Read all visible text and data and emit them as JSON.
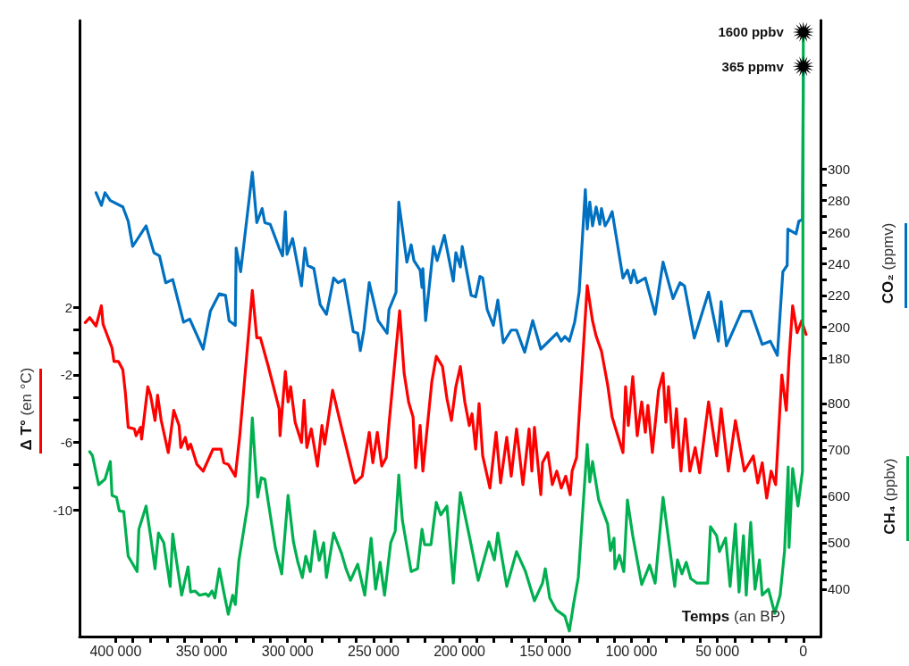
{
  "chart_data": {
    "type": "line",
    "xlabel": "Temps (an BP)",
    "ylabel": "Δ T° (en °C)",
    "y2label": "CO₂ (ppmv)",
    "y3label": "CH₄ (ppbv)",
    "xlim": [
      421000,
      -10000
    ],
    "xticks": [
      {
        "value": 400000,
        "label": "400 000"
      },
      {
        "value": 390000,
        "label": null
      },
      {
        "value": 380000,
        "label": null
      },
      {
        "value": 370000,
        "label": null
      },
      {
        "value": 360000,
        "label": null
      },
      {
        "value": 350000,
        "label": "350 000"
      },
      {
        "value": 340000,
        "label": null
      },
      {
        "value": 330000,
        "label": null
      },
      {
        "value": 320000,
        "label": null
      },
      {
        "value": 310000,
        "label": null
      },
      {
        "value": 300000,
        "label": "300 000"
      },
      {
        "value": 290000,
        "label": null
      },
      {
        "value": 280000,
        "label": null
      },
      {
        "value": 270000,
        "label": null
      },
      {
        "value": 260000,
        "label": null
      },
      {
        "value": 250000,
        "label": "250 000"
      },
      {
        "value": 240000,
        "label": null
      },
      {
        "value": 230000,
        "label": null
      },
      {
        "value": 220000,
        "label": null
      },
      {
        "value": 210000,
        "label": null
      },
      {
        "value": 200000,
        "label": "200 000"
      },
      {
        "value": 190000,
        "label": null
      },
      {
        "value": 180000,
        "label": null
      },
      {
        "value": 170000,
        "label": null
      },
      {
        "value": 160000,
        "label": null
      },
      {
        "value": 150000,
        "label": "150 000"
      },
      {
        "value": 140000,
        "label": null
      },
      {
        "value": 130000,
        "label": null
      },
      {
        "value": 120000,
        "label": null
      },
      {
        "value": 110000,
        "label": null
      },
      {
        "value": 100000,
        "label": "100 000"
      },
      {
        "value": 90000,
        "label": null
      },
      {
        "value": 80000,
        "label": null
      },
      {
        "value": 70000,
        "label": null
      },
      {
        "value": 60000,
        "label": null
      },
      {
        "value": 50000,
        "label": "50 000"
      },
      {
        "value": 40000,
        "label": null
      },
      {
        "value": 30000,
        "label": null
      },
      {
        "value": 20000,
        "label": null
      },
      {
        "value": 10000,
        "label": null
      },
      {
        "value": 0,
        "label": "0"
      }
    ],
    "ylim": [
      -17.5,
      19
    ],
    "yticks": [
      2,
      {
        "value": 0.67,
        "label": null
      },
      {
        "value": -0.67,
        "label": null
      },
      -2,
      {
        "value": -3.33,
        "label": null
      },
      {
        "value": -4.67,
        "label": null
      },
      -6,
      {
        "value": -7.33,
        "label": null
      },
      {
        "value": -8.67,
        "label": null
      },
      -10
    ],
    "y2lim": [
      4,
      394
    ],
    "y2ticks": [
      180,
      {
        "value": 190,
        "label": null
      },
      200,
      {
        "value": 210,
        "label": null
      },
      220,
      {
        "value": 230,
        "label": null
      },
      240,
      {
        "value": 250,
        "label": null
      },
      260,
      {
        "value": 270,
        "label": null
      },
      280,
      {
        "value": 290,
        "label": null
      },
      300
    ],
    "y3lim": [
      298,
      1625
    ],
    "y3ticks": [
      400,
      {
        "value": 420,
        "label": null
      },
      {
        "value": 440,
        "label": null
      },
      {
        "value": 460,
        "label": null
      },
      {
        "value": 480,
        "label": null
      },
      500,
      {
        "value": 520,
        "label": null
      },
      {
        "value": 540,
        "label": null
      },
      {
        "value": 560,
        "label": null
      },
      {
        "value": 580,
        "label": null
      },
      600,
      {
        "value": 620,
        "label": null
      },
      {
        "value": 640,
        "label": null
      },
      {
        "value": 660,
        "label": null
      },
      {
        "value": 680,
        "label": null
      },
      700,
      {
        "value": 720,
        "label": null
      },
      {
        "value": 740,
        "label": null
      },
      {
        "value": 760,
        "label": null
      },
      {
        "value": 780,
        "label": null
      },
      800
    ],
    "marker": "none",
    "line_style": "solid",
    "grid": false,
    "annotations": [
      "1600 ppbv",
      "365 ppmv"
    ],
    "series": [
      {
        "color": "#0070c0",
        "axis": "y2",
        "x": [
          411400,
          408300,
          406200,
          403100,
          395800,
          392700,
          390100,
          382300,
          377700,
          374500,
          370900,
          366800,
          360500,
          356900,
          349100,
          344900,
          339700,
          336100,
          334000,
          330400,
          329900,
          327300,
          320500,
          317900,
          314800,
          313200,
          310100,
          304900,
          302900,
          301300,
          300300,
          297100,
          291900,
          289900,
          288300,
          284700,
          281000,
          277400,
          273200,
          270600,
          267000,
          261800,
          259200,
          257700,
          255600,
          252500,
          247300,
          242100,
          241000,
          236900,
          235300,
          230600,
          228100,
          226500,
          222900,
          221800,
          221300,
          219700,
          215100,
          213000,
          208800,
          203600,
          202100,
          199500,
          198400,
          193200,
          190600,
          188100,
          186500,
          183900,
          180300,
          177700,
          174500,
          169900,
          166800,
          162100,
          157400,
          152700,
          143400,
          140800,
          138700,
          136100,
          133000,
          130400,
          126800,
          125700,
          124200,
          122600,
          120500,
          118400,
          117400,
          115300,
          113200,
          111200,
          104900,
          102300,
          100300,
          98700,
          96600,
          91900,
          86200,
          81600,
          75800,
          71700,
          69100,
          63400,
          55100,
          49400,
          47800,
          44700,
          35800,
          30600,
          23900,
          19200,
          15100,
          11900,
          9400,
          9000,
          4200,
          2600,
          500,
          0
        ],
        "values": [
          285,
          277,
          285,
          280,
          276,
          267,
          251,
          264,
          247,
          245,
          228,
          230,
          203,
          205,
          186,
          210,
          221,
          220,
          204,
          201,
          250,
          235,
          298,
          266,
          275,
          266,
          265,
          250,
          245,
          273,
          246,
          256,
          226,
          250,
          239,
          237,
          214,
          208,
          231,
          228,
          230,
          197,
          196,
          185,
          198,
          228,
          204,
          196,
          211,
          222,
          279,
          241,
          252,
          242,
          236,
          225,
          237,
          204,
          251,
          242,
          258,
          229,
          247,
          238,
          251,
          220,
          219,
          232,
          231,
          211,
          201,
          217,
          190,
          198,
          198,
          184,
          204,
          186,
          196,
          191,
          194,
          191,
          203,
          222,
          287,
          262,
          279,
          264,
          276,
          265,
          275,
          264,
          268,
          273,
          231,
          236,
          228,
          236,
          228,
          231,
          208,
          241,
          218,
          228,
          226,
          193,
          222,
          191,
          216,
          188,
          210,
          210,
          189,
          191,
          182,
          235,
          239,
          262,
          259,
          267,
          268,
          365
        ]
      },
      {
        "color": "#ff0000",
        "x": [
          417700,
          415100,
          411400,
          408300,
          407300,
          404700,
          402100,
          401000,
          398400,
          395800,
          394300,
          392700,
          389100,
          388100,
          385500,
          384900,
          381300,
          379700,
          377100,
          375600,
          373500,
          369400,
          366200,
          363100,
          362100,
          359500,
          357900,
          356400,
          352700,
          349100,
          343400,
          338700,
          337100,
          334500,
          330400,
          327800,
          320500,
          317900,
          315800,
          311200,
          304900,
          304400,
          301300,
          299700,
          298200,
          295600,
          291900,
          290400,
          288800,
          286200,
          282600,
          280000,
          278400,
          273800,
          269600,
          260800,
          256600,
          252500,
          250400,
          247800,
          245200,
          242600,
          241000,
          234800,
          232200,
          229600,
          227000,
          225500,
          222900,
          221300,
          216100,
          213500,
          209900,
          207300,
          204700,
          202100,
          199500,
          196900,
          194300,
          192700,
          190600,
          188600,
          186500,
          182300,
          178700,
          176100,
          172500,
          169900,
          166800,
          163100,
          159500,
          157900,
          156400,
          152700,
          151700,
          148600,
          146000,
          143400,
          140800,
          138200,
          135600,
          134500,
          131900,
          125700,
          122600,
          120500,
          117400,
          113800,
          111200,
          107000,
          104900,
          103400,
          101800,
          99200,
          96600,
          94000,
          91900,
          90400,
          87800,
          84200,
          81600,
          80000,
          78400,
          75800,
          73800,
          71200,
          68600,
          66000,
          62900,
          60300,
          55100,
          50400,
          47800,
          43600,
          39500,
          34300,
          29100,
          26500,
          23900,
          21300,
          18700,
          16100,
          14000,
          12500,
          9900,
          8300,
          6200,
          3600,
          1000,
          -1600
        ],
        "values": [
          1.1,
          1.4,
          0.9,
          2.1,
          1.0,
          0.3,
          -0.4,
          -1.2,
          -1.2,
          -1.7,
          -3.1,
          -5.1,
          -5.2,
          -5.6,
          -5.1,
          -5.8,
          -2.7,
          -3.2,
          -4.7,
          -3.2,
          -4.7,
          -6.6,
          -4.1,
          -5.0,
          -6.3,
          -5.7,
          -6.4,
          -6.1,
          -7.3,
          -7.7,
          -6.4,
          -6.4,
          -7.2,
          -7.3,
          -8.0,
          -5.6,
          3.0,
          0.2,
          0.2,
          -1.5,
          -4.0,
          -5.6,
          -1.8,
          -3.6,
          -2.7,
          -4.8,
          -6.0,
          -3.5,
          -6.3,
          -5.2,
          -7.4,
          -5.0,
          -6.1,
          -2.9,
          -4.7,
          -8.4,
          -8.0,
          -5.4,
          -7.2,
          -5.4,
          -7.4,
          -6.9,
          -4.9,
          1.8,
          -1.9,
          -3.6,
          -4.5,
          -7.5,
          -5.0,
          -7.7,
          -2.4,
          -0.9,
          -1.5,
          -3.4,
          -4.7,
          -2.7,
          -1.5,
          -3.6,
          -5.0,
          -4.3,
          -6.4,
          -3.7,
          -6.8,
          -8.7,
          -5.4,
          -8.4,
          -5.7,
          -8.0,
          -5.2,
          -8.5,
          -5.2,
          -7.7,
          -5.1,
          -9.1,
          -7.2,
          -6.6,
          -8.5,
          -7.7,
          -8.7,
          -8.0,
          -9.1,
          -7.7,
          -6.9,
          3.3,
          1.2,
          0.3,
          -0.6,
          -2.6,
          -4.5,
          -5.9,
          -6.6,
          -2.7,
          -5.0,
          -2.1,
          -5.6,
          -3.6,
          -5.4,
          -3.8,
          -6.6,
          -2.9,
          -1.9,
          -4.8,
          -2.7,
          -6.3,
          -4.0,
          -7.7,
          -4.6,
          -7.7,
          -6.3,
          -7.8,
          -3.6,
          -6.8,
          -4.0,
          -7.7,
          -4.7,
          -7.7,
          -6.8,
          -8.4,
          -7.2,
          -9.3,
          -7.7,
          -8.5,
          -4.7,
          -2.0,
          -4.1,
          -1.0,
          2.1,
          0.5,
          1.2,
          0.4
        ]
      },
      {
        "color": "#00b050",
        "axis": "y3",
        "x": [
          415100,
          413500,
          409900,
          406200,
          403100,
          402100,
          399500,
          397900,
          395300,
          392700,
          387500,
          386500,
          382300,
          379700,
          377100,
          375100,
          372000,
          368300,
          366800,
          364700,
          361600,
          357900,
          356400,
          353800,
          351200,
          347500,
          346000,
          343900,
          342300,
          339700,
          337100,
          334500,
          331900,
          330400,
          328300,
          323100,
          320500,
          319000,
          317400,
          315300,
          313200,
          311200,
          307000,
          303400,
          299700,
          296600,
          294000,
          291400,
          289400,
          286800,
          284200,
          281600,
          279000,
          277400,
          273200,
          268600,
          266000,
          263400,
          259200,
          255100,
          251400,
          248800,
          246200,
          243600,
          240000,
          237400,
          235300,
          233200,
          228100,
          224400,
          221800,
          220300,
          216600,
          213500,
          210900,
          207300,
          203600,
          199500,
          194300,
          189100,
          182900,
          179700,
          177700,
          172500,
          166800,
          161600,
          156400,
          151700,
          150100,
          147500,
          143900,
          138700,
          136100,
          133500,
          130900,
          125700,
          124200,
          122600,
          119000,
          113800,
          112200,
          110100,
          109600,
          107000,
          104400,
          102300,
          99200,
          94000,
          89400,
          86200,
          81600,
          74800,
          73200,
          70600,
          68100,
          65500,
          61800,
          55600,
          54000,
          50400,
          48800,
          45200,
          42600,
          39500,
          37400,
          34800,
          33200,
          30600,
          28100,
          25500,
          23900,
          20300,
          16600,
          13500,
          10900,
          8800,
          8300,
          6200,
          3100,
          500,
          0
        ],
        "values": [
          696,
          688,
          625,
          637,
          675,
          602,
          598,
          569,
          567,
          471,
          438,
          529,
          579,
          515,
          444,
          521,
          500,
          406,
          519,
          463,
          387,
          448,
          394,
          396,
          387,
          390,
          385,
          396,
          381,
          444,
          394,
          346,
          387,
          367,
          462,
          583,
          769,
          683,
          598,
          640,
          637,
          587,
          487,
          433,
          602,
          502,
          458,
          425,
          471,
          438,
          525,
          462,
          500,
          425,
          521,
          477,
          444,
          419,
          454,
          387,
          510,
          400,
          458,
          387,
          500,
          525,
          646,
          548,
          438,
          444,
          529,
          496,
          496,
          587,
          560,
          579,
          413,
          608,
          515,
          419,
          502,
          463,
          521,
          406,
          481,
          438,
          375,
          413,
          444,
          381,
          356,
          342,
          310,
          371,
          425,
          712,
          631,
          675,
          592,
          540,
          483,
          510,
          444,
          473,
          438,
          592,
          515,
          410,
          452,
          413,
          598,
          406,
          463,
          433,
          458,
          423,
          413,
          413,
          535,
          515,
          481,
          510,
          406,
          540,
          394,
          515,
          387,
          544,
          400,
          463,
          387,
          400,
          348,
          387,
          483,
          663,
          490,
          660,
          579,
          654,
          1600
        ]
      }
    ]
  }
}
